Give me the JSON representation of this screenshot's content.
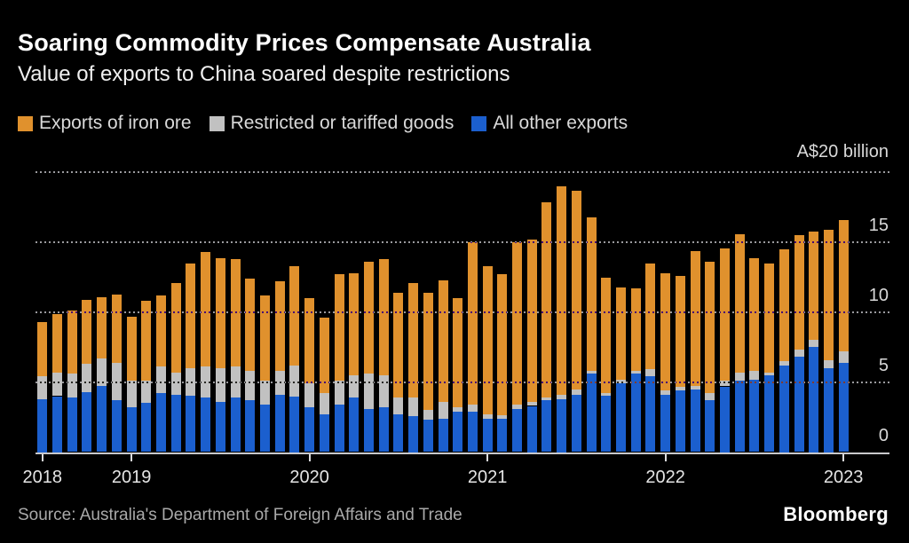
{
  "header": {
    "title": "Soaring Commodity Prices Compensate Australia",
    "subtitle": "Value of exports to China soared despite restrictions"
  },
  "footer": {
    "source": "Source: Australia's Department of Foreign Affairs and Trade",
    "brand": "Bloomberg"
  },
  "colors": {
    "background": "#000000",
    "iron_ore": "#e0912d",
    "restricted": "#c1c1c1",
    "other": "#1b5fce",
    "gridline_dot": "#9a9a9e",
    "axis_line": "#c9c9cc"
  },
  "chart_data": {
    "type": "bar",
    "stacked": true,
    "title": "Soaring Commodity Prices Compensate Australia",
    "subtitle": "Value of exports to China soared despite restrictions",
    "unit_label": "A$20 billion",
    "ylabel": "A$ billion",
    "ylim": [
      0,
      20
    ],
    "grid": "dotted-horizontal",
    "legend_position": "top",
    "y_gridlines": [
      5,
      10,
      15,
      20
    ],
    "y_axis_labels": [
      15,
      10,
      5,
      0
    ],
    "x": [
      "Jul 2018",
      "Aug 2018",
      "Sep 2018",
      "Oct 2018",
      "Nov 2018",
      "Dec 2018",
      "Jan 2019",
      "Feb 2019",
      "Mar 2019",
      "Apr 2019",
      "May 2019",
      "Jun 2019",
      "Jul 2019",
      "Aug 2019",
      "Sep 2019",
      "Oct 2019",
      "Nov 2019",
      "Dec 2019",
      "Jan 2020",
      "Feb 2020",
      "Mar 2020",
      "Apr 2020",
      "May 2020",
      "Jun 2020",
      "Jul 2020",
      "Aug 2020",
      "Sep 2020",
      "Oct 2020",
      "Nov 2020",
      "Dec 2020",
      "Jan 2021",
      "Feb 2021",
      "Mar 2021",
      "Apr 2021",
      "May 2021",
      "Jun 2021",
      "Jul 2021",
      "Aug 2021",
      "Sep 2021",
      "Oct 2021",
      "Nov 2021",
      "Dec 2021",
      "Jan 2022",
      "Feb 2022",
      "Mar 2022",
      "Apr 2022",
      "May 2022",
      "Jun 2022",
      "Jul 2022",
      "Aug 2022",
      "Sep 2022",
      "Oct 2022",
      "Nov 2022",
      "Dec 2022",
      "Jan 2023"
    ],
    "x_tick_labels": [
      {
        "index": 0,
        "label": "2018"
      },
      {
        "index": 6,
        "label": "2019"
      },
      {
        "index": 18,
        "label": "2020"
      },
      {
        "index": 30,
        "label": "2021"
      },
      {
        "index": 42,
        "label": "2022"
      },
      {
        "index": 54,
        "label": "2023"
      }
    ],
    "series": [
      {
        "name": "Exports of iron ore",
        "key": "iron-ore",
        "color": "#e0912d",
        "values": [
          3.9,
          4.2,
          4.5,
          4.6,
          4.4,
          4.9,
          4.6,
          5.7,
          5.1,
          6.4,
          7.5,
          8.2,
          7.9,
          7.7,
          6.6,
          6.1,
          6.4,
          7.1,
          6.1,
          5.4,
          7.6,
          7.3,
          8.0,
          8.3,
          7.5,
          8.2,
          8.4,
          8.7,
          7.8,
          11.6,
          10.6,
          10.1,
          11.6,
          11.6,
          14.0,
          14.9,
          14.2,
          11.0,
          8.3,
          6.6,
          5.9,
          7.6,
          8.4,
          7.9,
          9.7,
          9.4,
          9.5,
          9.9,
          8.1,
          7.8,
          8.0,
          8.2,
          7.8,
          9.3,
          9.4
        ]
      },
      {
        "name": "Restricted or tariffed goods",
        "key": "restricted",
        "color": "#c1c1c1",
        "values": [
          1.6,
          1.7,
          1.7,
          2.0,
          2.0,
          2.7,
          1.9,
          1.6,
          1.9,
          1.6,
          2.0,
          2.2,
          2.4,
          2.2,
          2.1,
          1.7,
          1.7,
          2.2,
          1.7,
          1.5,
          1.7,
          1.6,
          2.5,
          2.3,
          1.2,
          1.3,
          0.7,
          1.2,
          0.3,
          0.5,
          0.3,
          0.2,
          0.3,
          0.3,
          0.2,
          0.3,
          0.4,
          0.2,
          0.2,
          0.3,
          0.2,
          0.5,
          0.3,
          0.3,
          0.2,
          0.5,
          0.4,
          0.6,
          0.6,
          0.2,
          0.3,
          0.5,
          0.5,
          0.6,
          0.8
        ]
      },
      {
        "name": "All other exports",
        "key": "other",
        "color": "#1b5fce",
        "values": [
          3.8,
          4.0,
          3.9,
          4.3,
          4.7,
          3.7,
          3.2,
          3.5,
          4.2,
          4.1,
          4.0,
          3.9,
          3.6,
          3.9,
          3.7,
          3.4,
          4.1,
          4.0,
          3.2,
          2.7,
          3.4,
          3.9,
          3.1,
          3.2,
          2.7,
          2.6,
          2.3,
          2.4,
          2.9,
          2.9,
          2.4,
          2.4,
          3.1,
          3.3,
          3.7,
          3.8,
          4.1,
          5.6,
          4.0,
          4.9,
          5.6,
          5.4,
          4.1,
          4.4,
          4.5,
          3.7,
          4.7,
          5.1,
          5.2,
          5.5,
          6.2,
          6.8,
          7.5,
          6.0,
          6.4
        ]
      }
    ]
  }
}
